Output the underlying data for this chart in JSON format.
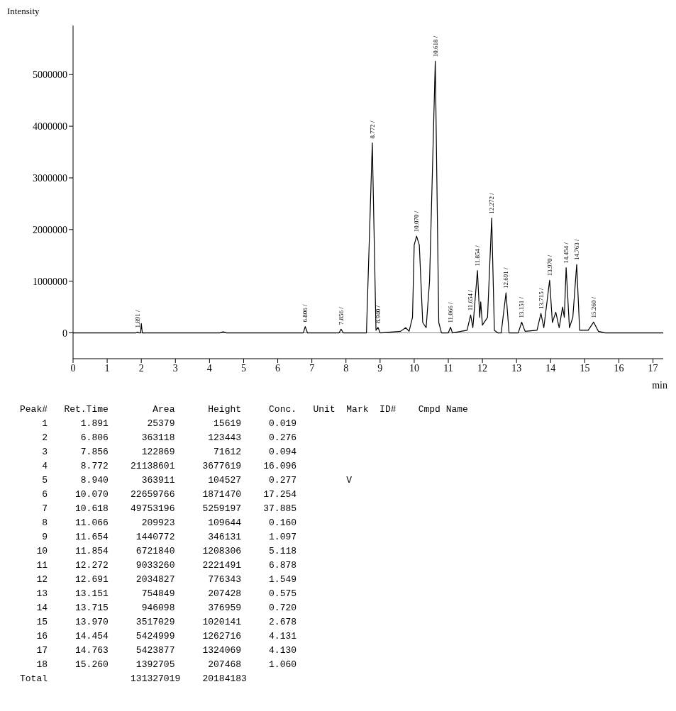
{
  "chart_data": [
    {
      "type": "line",
      "ylabel": "Intensity",
      "xlabel": "min",
      "xlim": [
        0,
        17.3
      ],
      "xticks": [
        0,
        1,
        2,
        3,
        4,
        5,
        6,
        7,
        8,
        9,
        10,
        11,
        12,
        13,
        14,
        15,
        16,
        17
      ],
      "ylim": [
        -500000,
        5950000
      ],
      "yticks": [
        0,
        1000000,
        2000000,
        3000000,
        4000000,
        5000000
      ],
      "grid": false,
      "legend": false,
      "marker": "none",
      "line_style": "solid",
      "ref_lines": [
        {
          "axis": "y",
          "value": 0,
          "color": "#888888"
        }
      ],
      "series": [
        {
          "color": "#000000",
          "x": [
            0,
            1.85,
            1.891,
            1.93,
            1.98,
            2.0,
            2.03,
            4.3,
            4.4,
            4.5,
            6.75,
            6.806,
            6.87,
            7.8,
            7.856,
            7.92,
            8.6,
            8.772,
            8.88,
            8.94,
            9.0,
            9.6,
            9.75,
            9.85,
            9.95,
            10.0,
            10.07,
            10.15,
            10.25,
            10.35,
            10.45,
            10.618,
            10.72,
            10.8,
            11.0,
            11.066,
            11.12,
            11.55,
            11.654,
            11.72,
            11.854,
            11.92,
            11.95,
            12.0,
            12.15,
            12.272,
            12.35,
            12.45,
            12.55,
            12.691,
            12.78,
            13.05,
            13.151,
            13.25,
            13.6,
            13.715,
            13.8,
            13.97,
            14.05,
            14.15,
            14.25,
            14.35,
            14.4,
            14.454,
            14.55,
            14.65,
            14.763,
            14.85,
            15.1,
            15.26,
            15.4,
            15.6,
            17.3
          ],
          "values": [
            0,
            0,
            15619,
            0,
            0,
            180000,
            0,
            0,
            20000,
            0,
            0,
            123443,
            0,
            0,
            71612,
            0,
            0,
            3677619,
            50000,
            104527,
            0,
            30000,
            100000,
            30000,
            300000,
            1700000,
            1871470,
            1700000,
            200000,
            100000,
            1000000,
            5259197,
            200000,
            0,
            0,
            109644,
            0,
            50000,
            346131,
            100000,
            1208306,
            300000,
            600000,
            150000,
            300000,
            2221491,
            50000,
            0,
            0,
            776343,
            0,
            0,
            207428,
            30000,
            50000,
            376959,
            100000,
            1020141,
            200000,
            400000,
            100000,
            500000,
            300000,
            1262716,
            100000,
            300000,
            1324069,
            50000,
            50000,
            207468,
            30000,
            0,
            0
          ]
        }
      ],
      "annotations": [
        {
          "text": "1.891 /",
          "x": 1.891,
          "y": 15619
        },
        {
          "text": "6.806 /",
          "x": 6.806,
          "y": 123443
        },
        {
          "text": "7.856 /",
          "x": 7.856,
          "y": 71612
        },
        {
          "text": "8.772 /",
          "x": 8.772,
          "y": 3677619
        },
        {
          "text": "8.940 /",
          "x": 8.94,
          "y": 104527
        },
        {
          "text": "10.070 /",
          "x": 10.07,
          "y": 1871470
        },
        {
          "text": "10.618 /",
          "x": 10.618,
          "y": 5259197
        },
        {
          "text": "11.066 /",
          "x": 11.066,
          "y": 109644
        },
        {
          "text": "11.654 /",
          "x": 11.654,
          "y": 346131
        },
        {
          "text": "11.854 /",
          "x": 11.854,
          "y": 1208306
        },
        {
          "text": "12.272 /",
          "x": 12.272,
          "y": 2221491
        },
        {
          "text": "12.691 /",
          "x": 12.691,
          "y": 776343
        },
        {
          "text": "13.151 /",
          "x": 13.151,
          "y": 207428
        },
        {
          "text": "13.715 /",
          "x": 13.715,
          "y": 376959
        },
        {
          "text": "13.970 /",
          "x": 13.97,
          "y": 1020141
        },
        {
          "text": "14.454 /",
          "x": 14.454,
          "y": 1262716
        },
        {
          "text": "14.763 /",
          "x": 14.763,
          "y": 1324069
        },
        {
          "text": "15.260 /",
          "x": 15.26,
          "y": 207468
        }
      ]
    },
    {
      "type": "other",
      "annotations": [
        "Peak#   Ret.Time        Area      Height     Conc.   Unit  Mark  ID#    Cmpd Name",
        "    1      1.891       25379       15619     0.019",
        "    2      6.806      363118      123443     0.276",
        "    3      7.856      122869       71612     0.094",
        "    4      8.772    21138601     3677619    16.096",
        "    5      8.940      363911      104527     0.277         V",
        "    6     10.070    22659766     1871470    17.254",
        "    7     10.618    49753196     5259197    37.885",
        "    8     11.066      209923      109644     0.160",
        "    9     11.654     1440772      346131     1.097",
        "   10     11.854     6721840     1208306     5.118",
        "   11     12.272     9033260     2221491     6.878",
        "   12     12.691     2034827      776343     1.549",
        "   13     13.151      754849      207428     0.575",
        "   14     13.715      946098      376959     0.720",
        "   15     13.970     3517029     1020141     2.678",
        "   16     14.454     5424999     1262716     4.131",
        "   17     14.763     5423877     1324069     4.130",
        "   18     15.260     1392705      207468     1.060",
        "Total               131327019    20184183"
      ]
    }
  ]
}
